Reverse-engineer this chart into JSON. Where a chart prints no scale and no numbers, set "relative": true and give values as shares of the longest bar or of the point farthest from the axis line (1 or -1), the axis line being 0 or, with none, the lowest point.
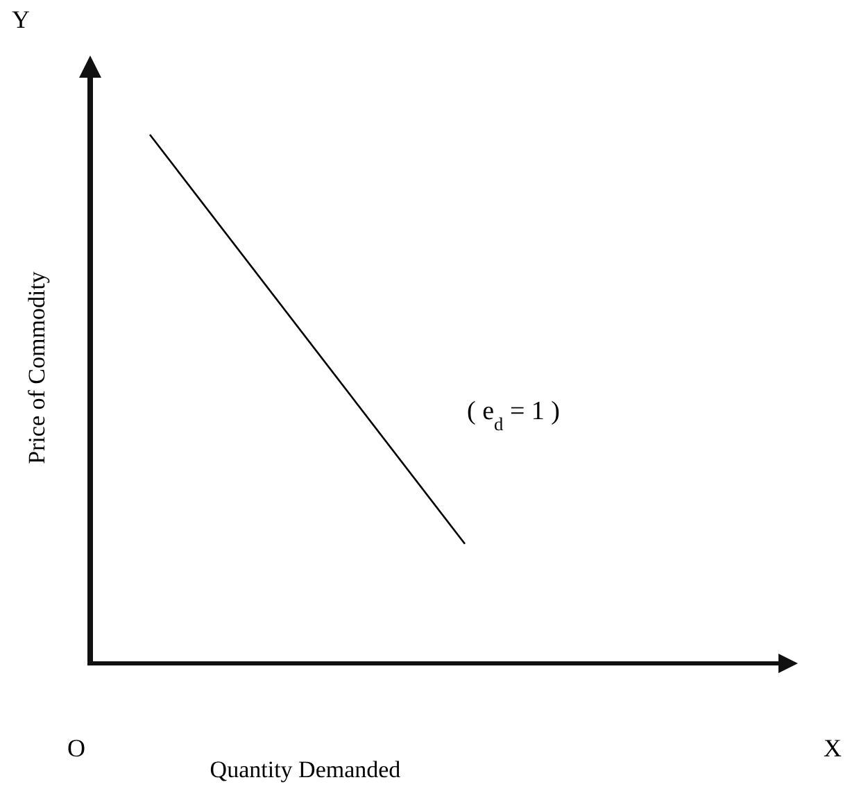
{
  "chart_data": {
    "type": "line",
    "relative": true,
    "xlabel": "Quantity Demanded",
    "ylabel": "Price of Commodity",
    "categories": [
      null,
      null
    ],
    "series": [
      {
        "color": "#000000",
        "values": [
          1,
          0.226
        ]
      }
    ],
    "annotations": [
      "Y",
      "O",
      "X",
      "( e$_{d}$ = 1 )"
    ],
    "marker": "none",
    "line_style": "solid"
  }
}
